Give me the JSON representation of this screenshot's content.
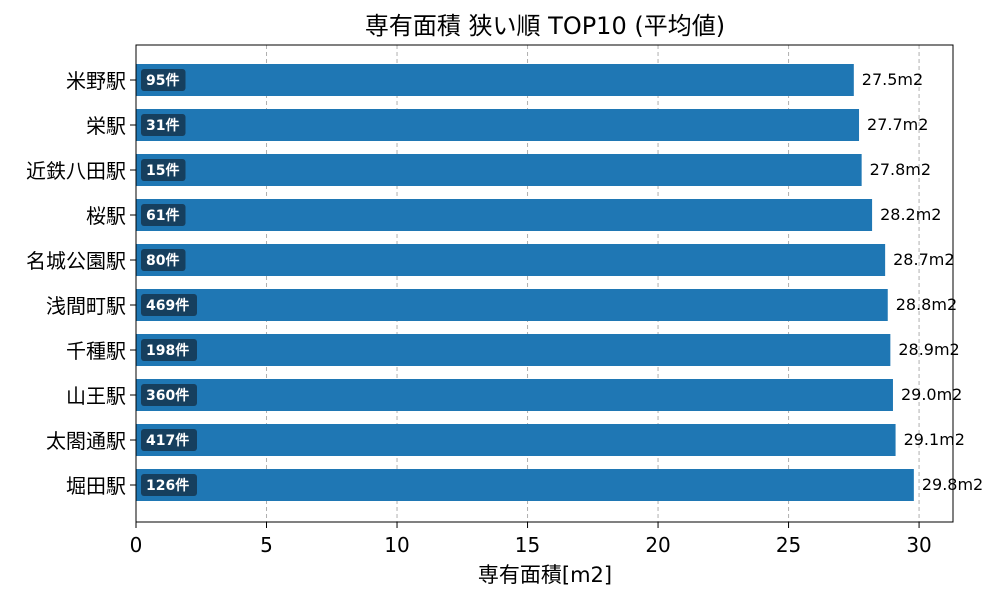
{
  "chart_data": {
    "type": "bar",
    "orientation": "horizontal",
    "title": "専有面積 狭い順 TOP10 (平均値)",
    "xlabel": "専有面積[m2]",
    "ylabel": "",
    "xlim": [
      0,
      31.3
    ],
    "xticks": [
      "0",
      "5",
      "10",
      "15",
      "20",
      "25",
      "30"
    ],
    "grid": "x-dashed",
    "categories": [
      "米野駅",
      "栄駅",
      "近鉄八田駅",
      "桜駅",
      "名城公園駅",
      "浅間町駅",
      "千種駅",
      "山王駅",
      "太閤通駅",
      "堀田駅"
    ],
    "values": [
      27.5,
      27.7,
      27.8,
      28.2,
      28.7,
      28.8,
      28.9,
      29.0,
      29.1,
      29.8
    ],
    "value_labels": [
      "27.5m2",
      "27.7m2",
      "27.8m2",
      "28.2m2",
      "28.7m2",
      "28.8m2",
      "28.9m2",
      "29.0m2",
      "29.1m2",
      "29.8m2"
    ],
    "counts": [
      "95件",
      "31件",
      "15件",
      "61件",
      "80件",
      "469件",
      "198件",
      "360件",
      "417件",
      "126件"
    ],
    "colors": {
      "bar": "#1f77b4",
      "count_badge": "#163f5e",
      "grid": "#b0b0b0"
    }
  }
}
